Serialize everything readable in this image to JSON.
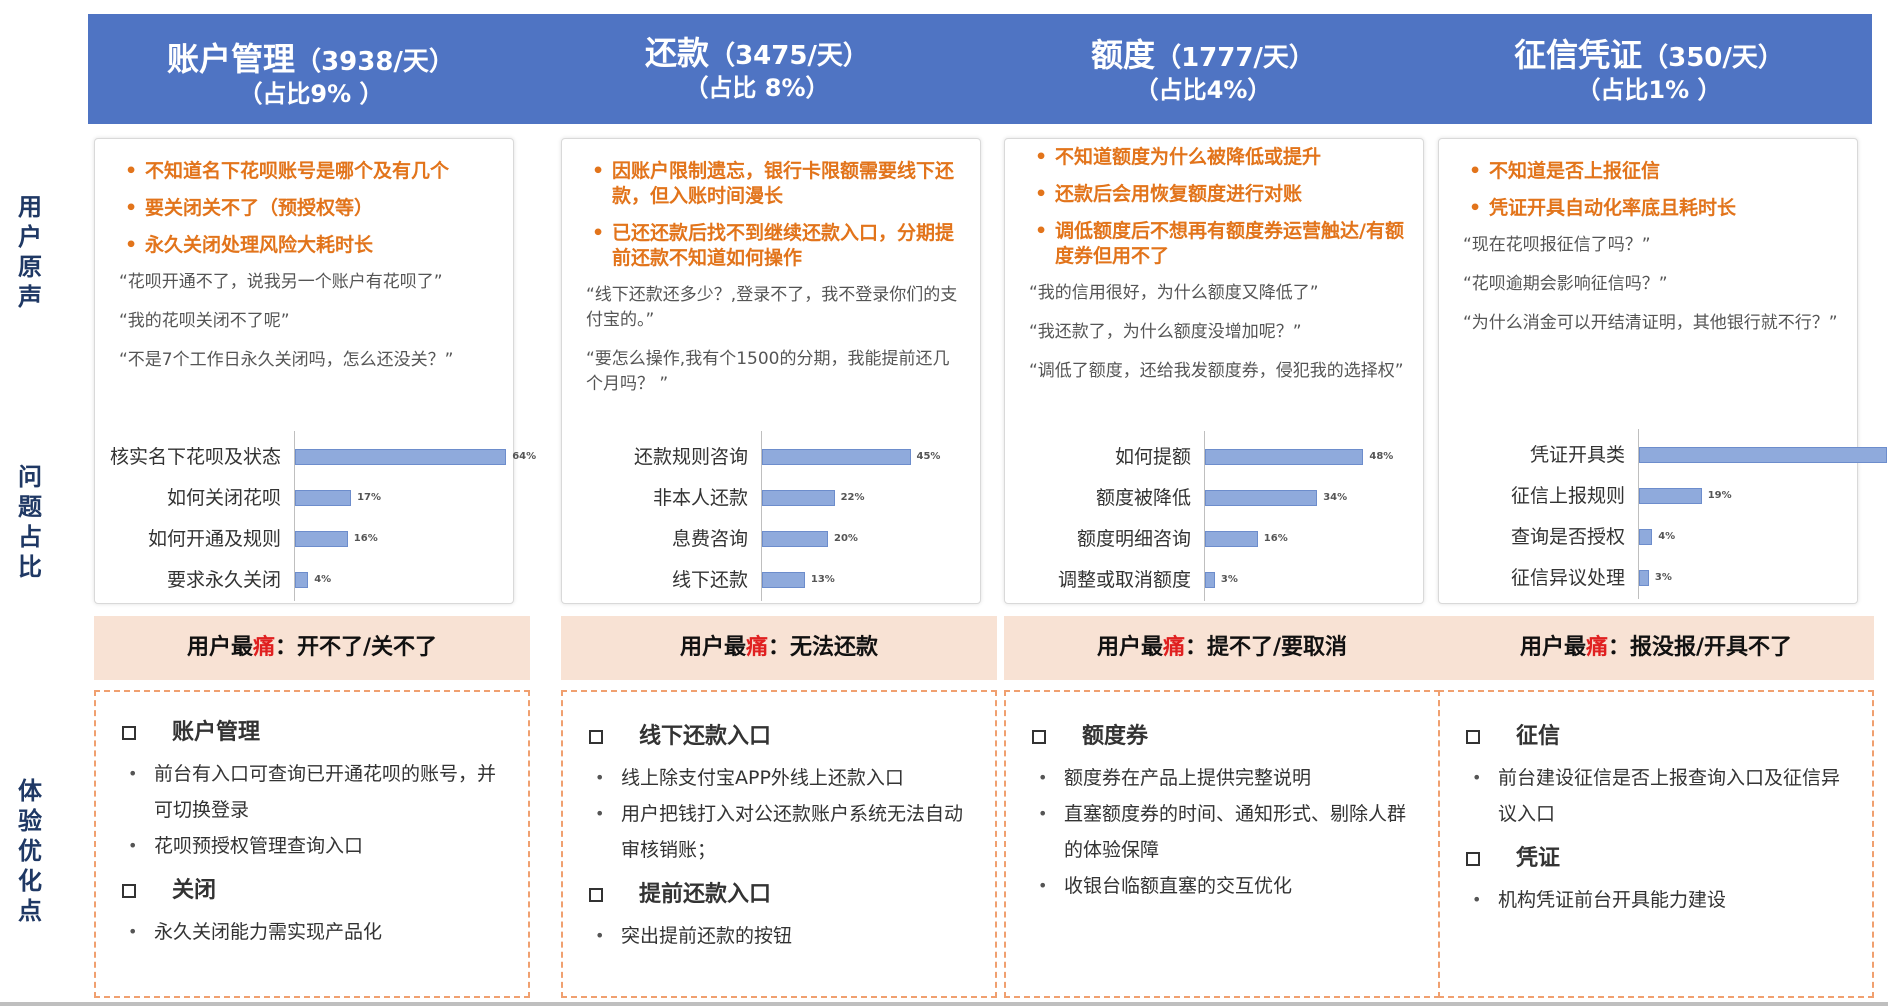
{
  "side_labels": [
    "用户原声",
    "问题占比",
    "体验优化点"
  ],
  "columns": [
    {
      "header_title": "账户管理",
      "header_rate": "（3938/天）",
      "header_share": "（占比9% ）",
      "pain_points": [
        "不知道名下花呗账号是哪个及有几个",
        "要关闭关不了（预授权等）",
        "永久关闭处理风险大耗时长"
      ],
      "quotes": [
        "“花呗开通不了，说我另一个账户有花呗了”",
        "“我的花呗关闭不了呢”",
        "“不是7个工作日永久关闭吗，怎么还没关？”"
      ],
      "chart_data": {
        "type": "bar",
        "categories": [
          "核实名下花呗及状态",
          "如何关闭花呗",
          "如何开通及规则",
          "要求永久关闭"
        ],
        "values": [
          64,
          17,
          16,
          4
        ],
        "labels": [
          "64%",
          "17%",
          "16%",
          "4%"
        ],
        "xlim": [
          0,
          100
        ]
      },
      "pain_summary_prefix": "用户最",
      "pain_summary_red": "痛",
      "pain_summary_suffix": "：开不了/关不了",
      "optimizations": [
        {
          "heading": "账户管理",
          "items": [
            "前台有入口可查询已开通花呗的账号，并可切换登录",
            "花呗预授权管理查询入口"
          ]
        },
        {
          "heading": "关闭",
          "items": [
            "永久关闭能力需实现产品化"
          ]
        }
      ]
    },
    {
      "header_title": "还款",
      "header_rate": "（3475/天）",
      "header_share": "（占比 8%）",
      "pain_points": [
        "因账户限制遗忘，银行卡限额需要线下还款，但入账时间漫长",
        "已还还款后找不到继续还款入口，分期提前还款不知道如何操作"
      ],
      "quotes": [
        "“线下还款还多少？,登录不了，我不登录你们的支付宝的。”",
        "“要怎么操作,我有个1500的分期，我能提前还几个月吗？ ”"
      ],
      "chart_data": {
        "type": "bar",
        "categories": [
          "还款规则咨询",
          "非本人还款",
          "息费咨询",
          "线下还款"
        ],
        "values": [
          45,
          22,
          20,
          13
        ],
        "labels": [
          "45%",
          "22%",
          "20%",
          "13%"
        ],
        "xlim": [
          0,
          100
        ]
      },
      "pain_summary_prefix": "用户最",
      "pain_summary_red": "痛",
      "pain_summary_suffix": "：无法还款",
      "optimizations": [
        {
          "heading": "线下还款入口",
          "items": [
            "线上除支付宝APP外线上还款入口",
            "用户把钱打入对公还款账户系统无法自动审核销账；"
          ]
        },
        {
          "heading": "提前还款入口",
          "items": [
            "突出提前还款的按钮"
          ]
        }
      ]
    },
    {
      "header_title": "额度",
      "header_rate": "（1777/天）",
      "header_share": "（占比4%）",
      "pain_points": [
        "不知道额度为什么被降低或提升",
        "还款后会用恢复额度进行对账",
        "调低额度后不想再有额度券运营触达/有额度券但用不了"
      ],
      "quotes": [
        "“我的信用很好，为什么额度又降低了”",
        "“我还款了，为什么额度没增加呢？”",
        "“调低了额度，还给我发额度券，侵犯我的选择权”"
      ],
      "chart_data": {
        "type": "bar",
        "categories": [
          "如何提额",
          "额度被降低",
          "额度明细咨询",
          "调整或取消额度"
        ],
        "values": [
          48,
          34,
          16,
          3
        ],
        "labels": [
          "48%",
          "34%",
          "16%",
          "3%"
        ],
        "xlim": [
          0,
          100
        ]
      },
      "pain_summary_prefix": "用户最",
      "pain_summary_red": "痛",
      "pain_summary_suffix": "：提不了/要取消",
      "optimizations": [
        {
          "heading": "额度券",
          "items": [
            "额度券在产品上提供完整说明",
            "直塞额度券的时间、通知形式、剔除人群的体验保障",
            "收银台临额直塞的交互优化"
          ]
        }
      ]
    },
    {
      "header_title": "征信凭证",
      "header_rate": "（350/天）",
      "header_share": "（占比1% ）",
      "pain_points": [
        "不知道是否上报征信",
        "凭证开具自动化率底且耗时长"
      ],
      "quotes": [
        "“现在花呗报征信了吗？”",
        "“花呗逾期会影响征信吗？”",
        "“为什么消金可以开结清证明，其他银行就不行？”"
      ],
      "chart_data": {
        "type": "bar",
        "categories": [
          "凭证开具类",
          "征信上报规则",
          "查询是否授权",
          "征信异议处理"
        ],
        "values": [
          75,
          19,
          4,
          3
        ],
        "labels": [
          "75%",
          "19%",
          "4%",
          "3%"
        ],
        "xlim": [
          0,
          100
        ]
      },
      "pain_summary_prefix": "用户最",
      "pain_summary_red": "痛",
      "pain_summary_suffix": "：报没报/开具不了",
      "optimizations": [
        {
          "heading": "征信",
          "items": [
            "前台建设征信是否上报查询入口及征信异议入口"
          ]
        },
        {
          "heading": "凭证",
          "items": [
            "机构凭证前台开具能力建设"
          ]
        }
      ]
    }
  ]
}
